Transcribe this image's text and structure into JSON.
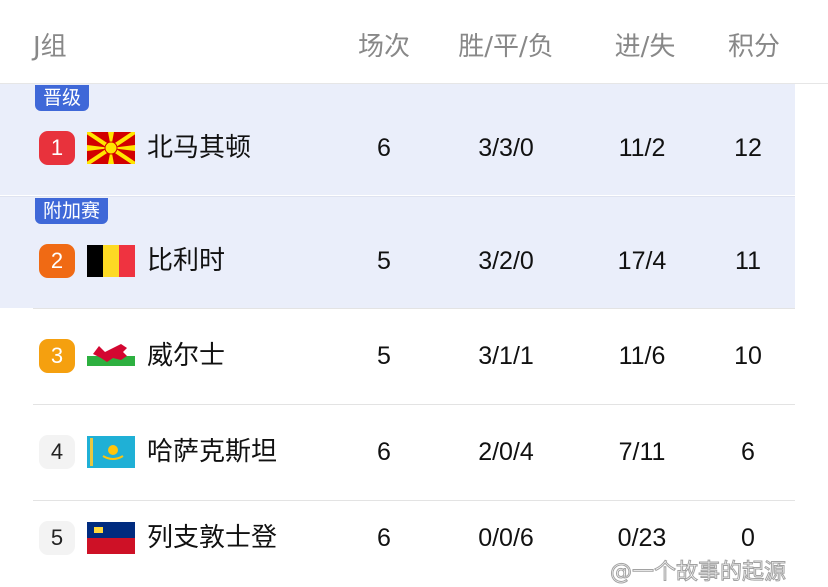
{
  "header": {
    "group": "J组",
    "played": "场次",
    "wdl": "胜/平/负",
    "goals": "进/失",
    "points": "积分"
  },
  "rows": [
    {
      "tag": "晋级",
      "rank": "1",
      "rank_color": "#e8323c",
      "flag": "north-macedonia",
      "team": "北马其顿",
      "played": "6",
      "wdl": "3/3/0",
      "goals": "11/2",
      "points": "12"
    },
    {
      "tag": "附加赛",
      "rank": "2",
      "rank_color": "#f06a14",
      "flag": "belgium",
      "team": "比利时",
      "played": "5",
      "wdl": "3/2/0",
      "goals": "17/4",
      "points": "11"
    },
    {
      "rank": "3",
      "rank_color": "#f5a00f",
      "flag": "wales",
      "team": "威尔士",
      "played": "5",
      "wdl": "3/1/1",
      "goals": "11/6",
      "points": "10"
    },
    {
      "rank": "4",
      "rank_color": "#f3f3f3",
      "flag": "kazakhstan",
      "team": "哈萨克斯坦",
      "played": "6",
      "wdl": "2/0/4",
      "goals": "7/11",
      "points": "6"
    },
    {
      "rank": "5",
      "rank_color": "#f3f3f3",
      "flag": "liechtenstein",
      "team": "列支敦士登",
      "played": "6",
      "wdl": "0/0/6",
      "goals": "0/23",
      "points": "0"
    }
  ],
  "watermark": "@一个故事的起源"
}
